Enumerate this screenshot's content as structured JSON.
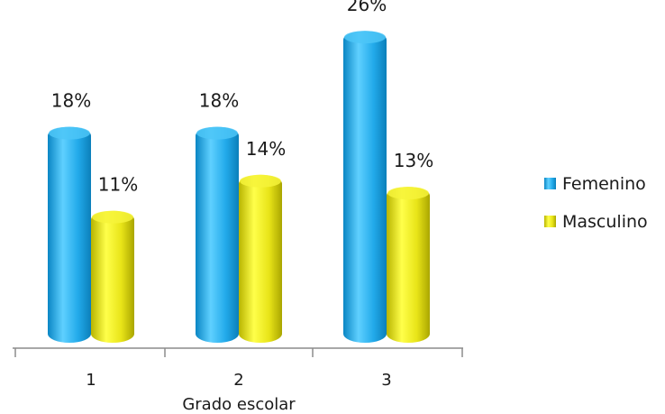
{
  "chart_data": {
    "type": "bar",
    "title": "",
    "xlabel": "Grado escolar",
    "ylabel": "",
    "categories": [
      "1",
      "2",
      "3"
    ],
    "series": [
      {
        "name": "Femenino",
        "values": [
          18,
          18,
          26
        ],
        "labels": [
          "18%",
          "18%",
          "26%"
        ],
        "color": "#1fa8e6"
      },
      {
        "name": "Masculino",
        "values": [
          11,
          14,
          13
        ],
        "labels": [
          "11%",
          "14%",
          "13%"
        ],
        "color": "#e3e018"
      }
    ],
    "ylim": [
      0,
      27
    ],
    "grid": false,
    "legend_position": "right"
  }
}
